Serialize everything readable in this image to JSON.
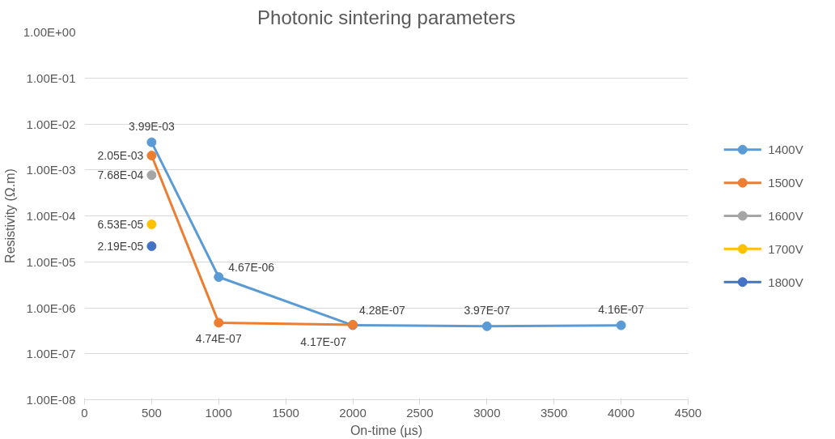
{
  "chart_data": {
    "type": "line",
    "title": "Photonic sintering parameters",
    "xlabel": "On-time (µs)",
    "ylabel": "Resistivity (Ω.m)",
    "log": "y",
    "grid": "y",
    "legend": "right",
    "marker": "circle",
    "line_style": "solid",
    "data_labels": true,
    "xlim": [
      0,
      4500
    ],
    "xticks": [
      0,
      500,
      1000,
      1500,
      2000,
      2500,
      3000,
      3500,
      4000,
      4500
    ],
    "ylim": [
      1e-08,
      1
    ],
    "yticks": [
      {
        "value": 1e-08,
        "label": "1.00E-08"
      },
      {
        "value": 1e-07,
        "label": "1.00E-07"
      },
      {
        "value": 1e-06,
        "label": "1.00E-06"
      },
      {
        "value": 1e-05,
        "label": "1.00E-05"
      },
      {
        "value": 0.0001,
        "label": "1.00E-04"
      },
      {
        "value": 0.001,
        "label": "1.00E-03"
      },
      {
        "value": 0.01,
        "label": "1.00E-02"
      },
      {
        "value": 0.1,
        "label": "1.00E-01"
      },
      {
        "value": 1,
        "label": "1.00E+00"
      }
    ],
    "series": [
      {
        "name": "1400V",
        "color": "#5b9bd5",
        "x": [
          500,
          1000,
          2000,
          3000,
          4000
        ],
        "values": [
          0.00399,
          4.67e-06,
          4.17e-07,
          3.97e-07,
          4.16e-07
        ],
        "value_labels": [
          "3.99E-03",
          "4.67E-06",
          "4.17E-07",
          "3.97E-07",
          "4.16E-07"
        ]
      },
      {
        "name": "1500V",
        "color": "#ed7d31",
        "x": [
          500,
          1000,
          2000
        ],
        "values": [
          0.00205,
          4.74e-07,
          4.28e-07
        ],
        "value_labels": [
          "2.05E-03",
          "4.74E-07",
          "4.28E-07"
        ]
      },
      {
        "name": "1600V",
        "color": "#a5a5a5",
        "x": [
          500
        ],
        "values": [
          0.000768
        ],
        "value_labels": [
          "7.68E-04"
        ]
      },
      {
        "name": "1700V",
        "color": "#ffc000",
        "x": [
          500
        ],
        "values": [
          6.53e-05
        ],
        "value_labels": [
          "6.53E-05"
        ]
      },
      {
        "name": "1800V",
        "color": "#4472c4",
        "x": [
          500
        ],
        "values": [
          2.19e-05
        ],
        "value_labels": [
          "2.19E-05"
        ]
      }
    ]
  }
}
